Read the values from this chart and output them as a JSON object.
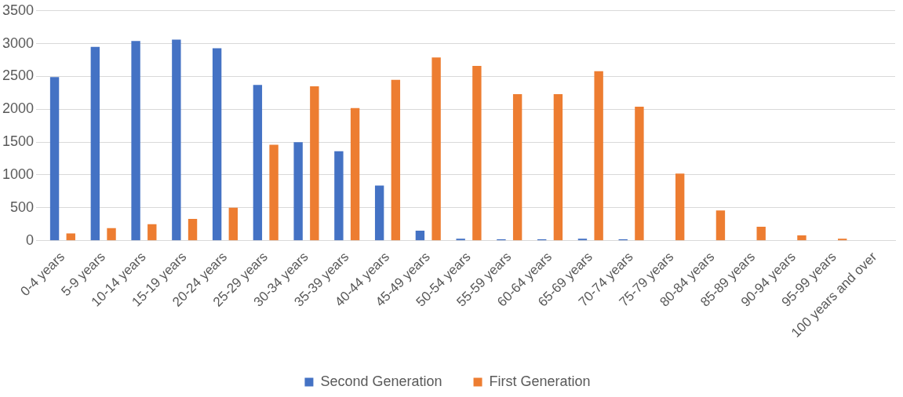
{
  "chart_data": {
    "type": "bar",
    "categories": [
      "0-4 years",
      "5-9 years",
      "10-14 years",
      "15-19 years",
      "20-24 years",
      "25-29 years",
      "30-34 years",
      "35-39 years",
      "40-44 years",
      "45-49 years",
      "50-54 years",
      "55-59 years",
      "60-64 years",
      "65-69 years",
      "70-74 years",
      "75-79 years",
      "80-84 years",
      "85-89 years",
      "90-94 years",
      "95-99 years",
      "100 years and over"
    ],
    "series": [
      {
        "name": "Second Generation",
        "color": "#4472c4",
        "values": [
          2490,
          2950,
          3040,
          3060,
          2930,
          2370,
          1500,
          1360,
          840,
          150,
          30,
          20,
          20,
          30,
          20,
          0,
          0,
          0,
          0,
          0,
          0
        ]
      },
      {
        "name": "First Generation",
        "color": "#ed7d31",
        "values": [
          110,
          190,
          250,
          330,
          500,
          1460,
          2350,
          2020,
          2450,
          2790,
          2660,
          2230,
          2230,
          2580,
          2040,
          1020,
          460,
          210,
          80,
          30,
          0
        ]
      }
    ],
    "ylim": [
      0,
      3500
    ],
    "yticks": [
      0,
      500,
      1000,
      1500,
      2000,
      2500,
      3000,
      3500
    ],
    "grid": "y",
    "legend": "bottom"
  }
}
